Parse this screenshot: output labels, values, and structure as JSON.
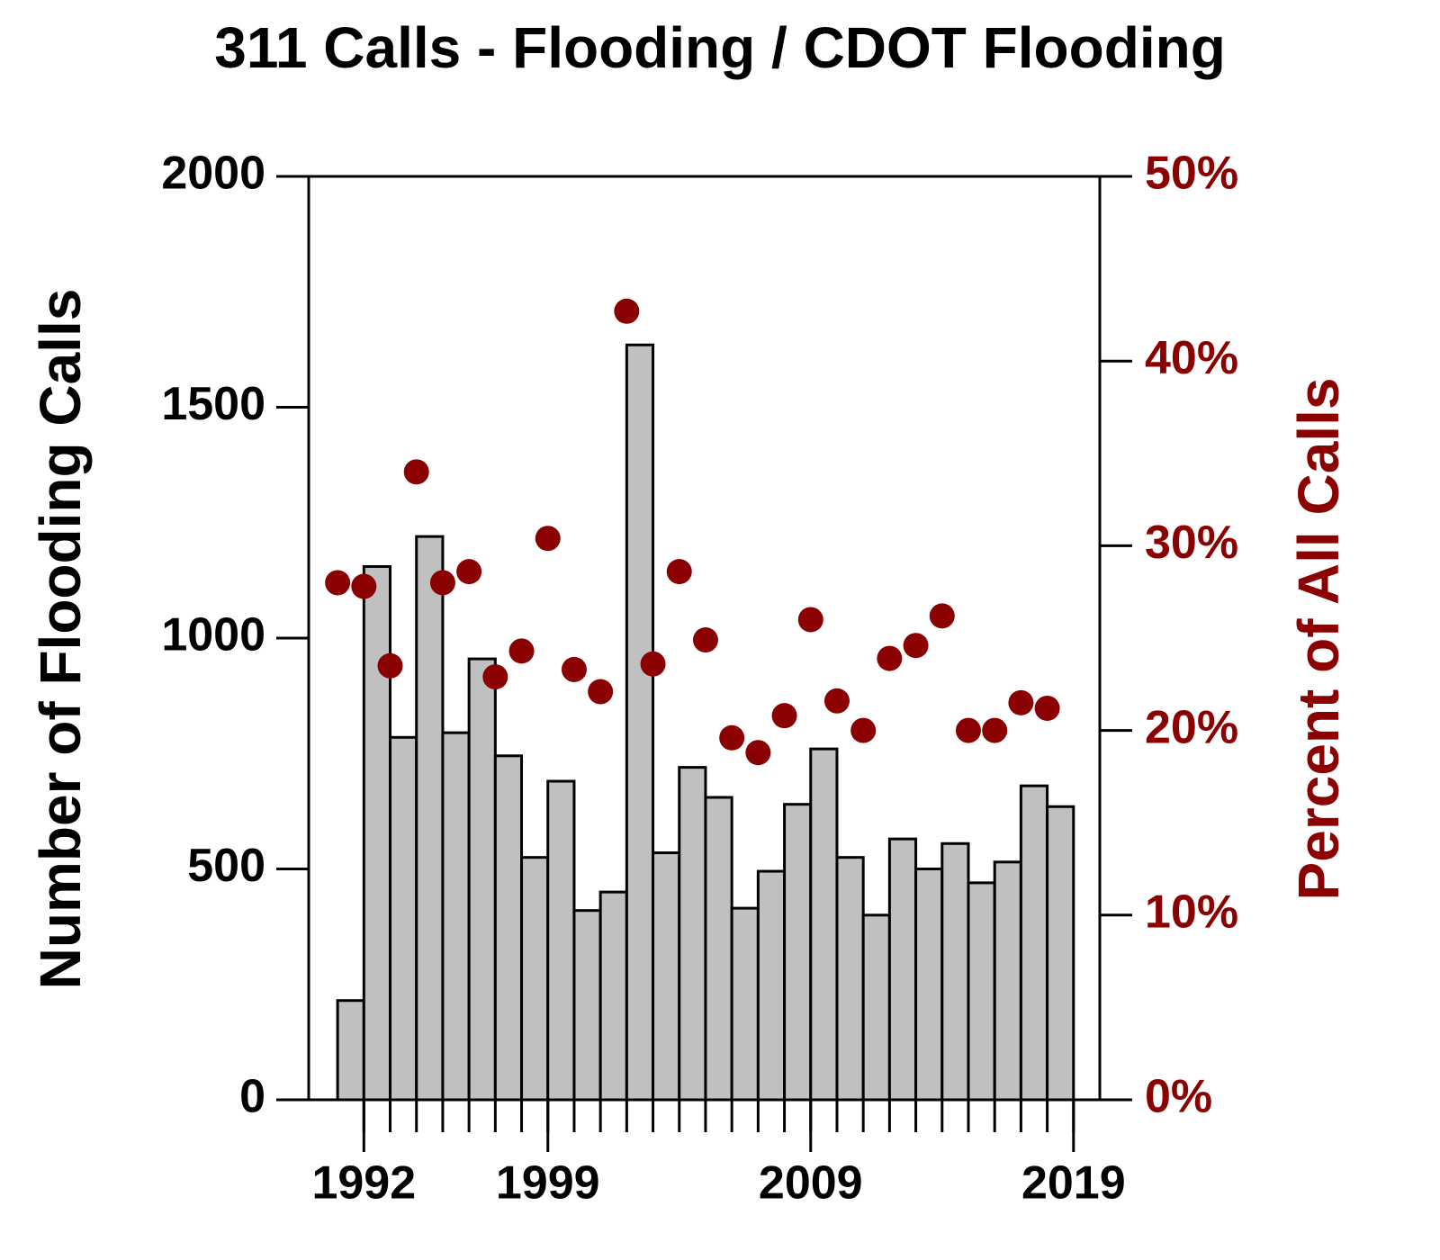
{
  "chart_data": {
    "type": "bar",
    "title": "311 Calls - Flooding / CDOT Flooding",
    "y_label": "Number of Flooding Calls",
    "y2_label": "Percent of All Calls",
    "x": [
      1991,
      1992,
      1993,
      1994,
      1995,
      1996,
      1997,
      1998,
      1999,
      2000,
      2001,
      2002,
      2003,
      2004,
      2005,
      2006,
      2007,
      2008,
      2009,
      2010,
      2011,
      2012,
      2013,
      2014,
      2015,
      2016,
      2017,
      2018
    ],
    "series": [
      {
        "name": "Flooding Calls",
        "type": "bar",
        "color": "#c0c0c0",
        "values": [
          215,
          1155,
          785,
          1220,
          795,
          955,
          745,
          525,
          690,
          410,
          450,
          1635,
          535,
          720,
          655,
          415,
          495,
          640,
          760,
          525,
          400,
          565,
          500,
          555,
          470,
          515,
          680,
          635
        ]
      },
      {
        "name": "Percent of All Calls",
        "type": "scatter",
        "axis": "y2",
        "color": "#8b0000",
        "values": [
          28.0,
          27.8,
          23.5,
          34.0,
          28.0,
          28.6,
          22.9,
          24.3,
          30.4,
          23.3,
          22.1,
          42.7,
          23.6,
          28.6,
          24.9,
          19.6,
          18.8,
          20.8,
          26.0,
          21.6,
          20.0,
          23.9,
          24.6,
          26.2,
          20.0,
          20.0,
          21.5,
          21.2
        ]
      }
    ],
    "xlim": [
      1989.9,
      2020
    ],
    "xticks": [
      1992,
      1999,
      2009,
      2019
    ],
    "xminorticks": [
      1992,
      1993,
      1994,
      1995,
      1996,
      1997,
      1998,
      1999,
      2000,
      2001,
      2002,
      2003,
      2004,
      2005,
      2006,
      2007,
      2008,
      2009,
      2010,
      2011,
      2012,
      2013,
      2014,
      2015,
      2016,
      2017,
      2018,
      2019
    ],
    "ylim": [
      0,
      2000
    ],
    "yticks": [
      0,
      500,
      1000,
      1500,
      2000
    ],
    "y2lim": [
      0,
      50
    ],
    "y2ticks": [
      {
        "value": 0,
        "label": "0%"
      },
      {
        "value": 10,
        "label": "10%"
      },
      {
        "value": 20,
        "label": "20%"
      },
      {
        "value": 30,
        "label": "30%"
      },
      {
        "value": 40,
        "label": "40%"
      },
      {
        "value": 50,
        "label": "50%"
      }
    ],
    "y2_color": "#8b0000"
  }
}
